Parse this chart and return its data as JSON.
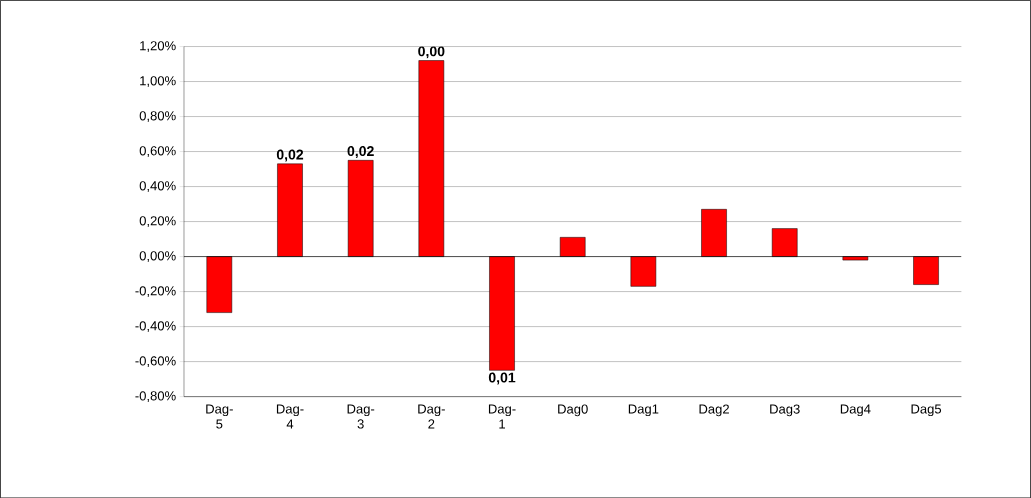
{
  "chart_data": {
    "type": "bar",
    "categories": [
      "Dag-5",
      "Dag-4",
      "Dag-3",
      "Dag-2",
      "Dag-1",
      "Dag0",
      "Dag1",
      "Dag2",
      "Dag3",
      "Dag4",
      "Dag5"
    ],
    "values": [
      -0.32,
      0.53,
      0.55,
      1.12,
      -0.65,
      0.11,
      -0.17,
      0.27,
      0.16,
      -0.02,
      -0.16
    ],
    "annotations": [
      {
        "text": "0,02",
        "x": "Dag-4",
        "y": 0.53
      },
      {
        "text": "0,02",
        "x": "Dag-3",
        "y": 0.55
      },
      {
        "text": "0,00",
        "x": "Dag-2",
        "y": 1.12
      },
      {
        "text": "0,01",
        "x": "Dag-1",
        "y": -0.65
      }
    ],
    "color": "#ff0000",
    "ylim": [
      -0.8,
      1.2
    ],
    "yticks": [
      {
        "value": -0.8,
        "label": "-0,80%"
      },
      {
        "value": -0.6,
        "label": "-0,60%"
      },
      {
        "value": -0.4,
        "label": "-0,40%"
      },
      {
        "value": -0.2,
        "label": "-0,20%"
      },
      {
        "value": 0,
        "label": "0,00%"
      },
      {
        "value": 0.2,
        "label": "0,20%"
      },
      {
        "value": 0.4,
        "label": "0,40%"
      },
      {
        "value": 0.6,
        "label": "0,60%"
      },
      {
        "value": 0.8,
        "label": "0,80%"
      },
      {
        "value": 1.0,
        "label": "1,00%"
      },
      {
        "value": 1.2,
        "label": "1,20%"
      }
    ],
    "grid": "y"
  }
}
